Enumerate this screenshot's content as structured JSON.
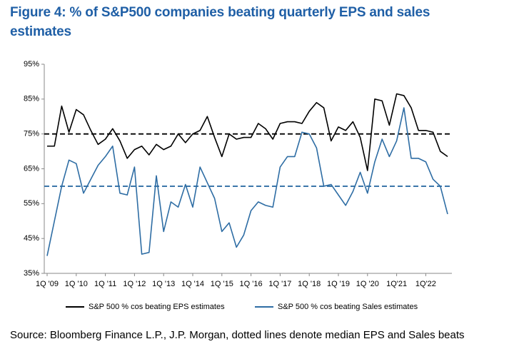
{
  "chart_data": {
    "type": "line",
    "title": "Figure 4: % of S&P500 companies beating quarterly EPS and sales estimates",
    "source": "Source: Bloomberg Finance L.P., J.P. Morgan, dotted lines denote median EPS and Sales beats",
    "categories": [
      "1Q '09",
      null,
      null,
      null,
      "1Q '10",
      null,
      null,
      null,
      "1Q '11",
      null,
      null,
      null,
      "1Q '12",
      null,
      null,
      null,
      "1Q '13",
      null,
      null,
      null,
      "1Q '14",
      null,
      null,
      null,
      "1Q '15",
      null,
      null,
      null,
      "1Q '16",
      null,
      null,
      null,
      "1Q '17",
      null,
      null,
      null,
      "1Q '18",
      null,
      null,
      null,
      "1Q '19",
      null,
      null,
      null,
      "1Q '20",
      null,
      null,
      null,
      "1Q'21",
      null,
      null,
      null,
      "1Q'22",
      null,
      null,
      null
    ],
    "series": [
      {
        "name": "S&P 500 % cos beating EPS estimates",
        "color": "#000000",
        "values": [
          71.5,
          71.5,
          83,
          75.5,
          82,
          80.5,
          76,
          72,
          73.5,
          76.5,
          73,
          68,
          70.5,
          71.5,
          69,
          72,
          70.5,
          71.5,
          75,
          72.5,
          75,
          76,
          80,
          74,
          68.5,
          75,
          73.5,
          74,
          74,
          78,
          76.5,
          73.5,
          78,
          78.5,
          78.5,
          78,
          81.5,
          84,
          82.5,
          73,
          77,
          76,
          78.5,
          74,
          64.5,
          85,
          84.5,
          77.5,
          86.5,
          86,
          82.5,
          76,
          76,
          75.5,
          70,
          68.5
        ]
      },
      {
        "name": "S&P 500 % cos beating Sales estimates",
        "color": "#2e6da4",
        "values": [
          40,
          50,
          60,
          67.5,
          66.5,
          58,
          62,
          66,
          68.5,
          71.5,
          58,
          57.5,
          65.5,
          40.5,
          41,
          63,
          47,
          55.5,
          54,
          60.5,
          54,
          65.5,
          61,
          56.5,
          47,
          49.5,
          42.5,
          46,
          53,
          55.5,
          54.5,
          54,
          65.5,
          68.5,
          68.5,
          75.5,
          75,
          71,
          60,
          60.5,
          57.5,
          54.5,
          58.5,
          64,
          58,
          67,
          73.5,
          68.5,
          73,
          82.5,
          68,
          68,
          67,
          62,
          60,
          52
        ]
      }
    ],
    "reference_lines": [
      {
        "value": 75,
        "color": "#000000"
      },
      {
        "value": 60,
        "color": "#2e6da4"
      }
    ],
    "ylim": [
      35,
      95
    ],
    "yticks": [
      {
        "value": 35,
        "label": "35%"
      },
      {
        "value": 45,
        "label": "45%"
      },
      {
        "value": 55,
        "label": "55%"
      },
      {
        "value": 65,
        "label": "65%"
      },
      {
        "value": 75,
        "label": "75%"
      },
      {
        "value": 85,
        "label": "85%"
      },
      {
        "value": 95,
        "label": "95%"
      }
    ]
  }
}
